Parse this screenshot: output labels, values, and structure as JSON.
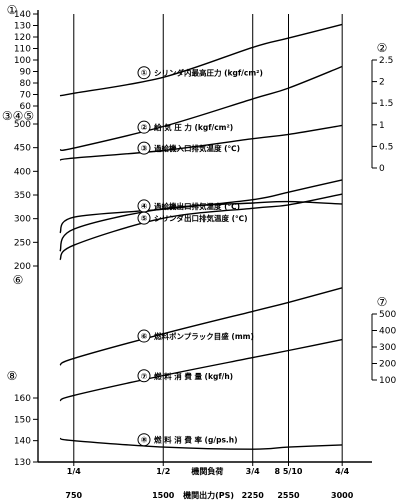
{
  "chart_data": {
    "type": "line",
    "x_top_labels": [
      "1/4",
      "1/2",
      "3/4",
      "8 5/10",
      "4/4"
    ],
    "x_bottom_values": [
      750,
      1500,
      2250,
      2550,
      3000
    ],
    "x_bottom_label_load": "機関負荷",
    "x_bottom_label_output": "機関出力(PS)",
    "panels": [
      {
        "id": "top",
        "left_axis_marker": "①",
        "left_ticks": [
          60,
          70,
          80,
          90,
          100,
          110,
          120,
          130,
          140
        ],
        "right_axis_marker": "②",
        "right_ticks": [
          "0",
          "0.5",
          "1",
          "1.5",
          "2",
          "2.5"
        ],
        "series": [
          {
            "num": "①",
            "name": "シリンダ内最高圧力 (kgf/cm²)",
            "axis": "left-①",
            "x": [
              600,
              750,
              1500,
              2250,
              2550,
              3000
            ],
            "y": [
              69,
              71,
              85,
              111,
              119,
              131
            ]
          },
          {
            "num": "②",
            "name": "給 気 圧 力 (kgf/cm²)",
            "axis": "right-②",
            "x": [
              600,
              750,
              1500,
              2250,
              2550,
              3000
            ],
            "y": [
              0.42,
              0.46,
              0.96,
              1.6,
              1.85,
              2.35
            ]
          }
        ]
      },
      {
        "id": "temps",
        "left_axis_marker": "③④⑤",
        "left_ticks": [
          200,
          250,
          300,
          350,
          400,
          450,
          500
        ],
        "series": [
          {
            "num": "③",
            "name": "過給機入口排気温度 (℃)",
            "x": [
              600,
              750,
              1500,
              2250,
              2550,
              3000
            ],
            "y": [
              424,
              428,
              444,
              469,
              478,
              497
            ]
          },
          {
            "num": "④",
            "name": "過給機出口排気温度 (℃)",
            "x": [
              600,
              750,
              1500,
              2250,
              2550,
              3000
            ],
            "y": [
              270,
              303,
              320,
              340,
              356,
              382
            ]
          },
          {
            "num": "⑤",
            "name": "シリンダ出口排気温度 (℃)",
            "x": [
              600,
              750,
              1500,
              2250,
              2550,
              3000
            ],
            "y": [
              231,
              278,
              321,
              333,
              336,
              331
            ]
          },
          {
            "num": "",
            "name": "",
            "x": [
              600,
              750,
              1500,
              2250,
              2550,
              3000
            ],
            "y": [
              213,
              244,
              301,
              322,
              329,
              352
            ]
          }
        ]
      },
      {
        "id": "pump",
        "left_axis_marker": "⑥",
        "right_axis_marker": "⑦",
        "right_ticks": [
          100,
          200,
          300,
          400,
          500
        ],
        "series": [
          {
            "num": "⑥",
            "name": "燃料ポンプラック目盛 (mm)",
            "x": [
              600,
              750,
              1500,
              2250,
              2550,
              3000
            ],
            "y": [
              0.24,
              0.3,
              0.52,
              0.72,
              0.8,
              0.93
            ]
          },
          {
            "num": "⑦",
            "name": "燃 料 消 費 量 (kgf/h)",
            "axis": "right-⑦",
            "x": [
              600,
              750,
              1500,
              2250,
              2550,
              3000
            ],
            "y": [
              120,
              152,
              273,
              381,
              424,
              490
            ]
          }
        ]
      },
      {
        "id": "sfc",
        "left_axis_marker": "⑧",
        "left_ticks": [
          130,
          140,
          150,
          160
        ],
        "series": [
          {
            "num": "⑧",
            "name": "燃 料 消 費 率 (g/ps.h)",
            "x": [
              600,
              750,
              1500,
              2250,
              2550,
              3000
            ],
            "y": [
              141,
              140,
              137,
              136,
              137,
              138
            ]
          }
        ]
      }
    ]
  }
}
